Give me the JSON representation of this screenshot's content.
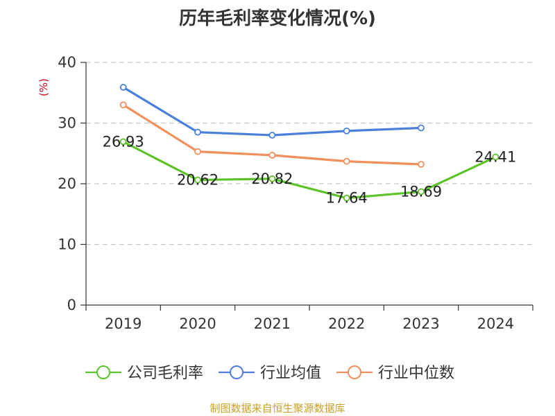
{
  "chart_data": {
    "type": "line",
    "title": "历年毛利率变化情况(%)",
    "ylabel": "(%)",
    "xlabel": "",
    "categories": [
      "2019",
      "2020",
      "2021",
      "2022",
      "2023",
      "2024"
    ],
    "ylim": [
      0,
      40
    ],
    "yticks": [
      0,
      10,
      20,
      30,
      40
    ],
    "grid": true,
    "legend_position": "bottom",
    "series": [
      {
        "name": "公司毛利率",
        "color": "#5cc328",
        "values": [
          26.93,
          20.62,
          20.82,
          17.64,
          18.69,
          24.41
        ],
        "labels": [
          "26.93",
          "20.62",
          "20.82",
          "17.64",
          "18.69",
          "24.41"
        ]
      },
      {
        "name": "行业均值",
        "color": "#4a7fdc",
        "values": [
          35.9,
          28.5,
          28.0,
          28.7,
          29.2,
          null
        ]
      },
      {
        "name": "行业中位数",
        "color": "#f28f5c",
        "values": [
          33.0,
          25.3,
          24.7,
          23.7,
          23.2,
          null
        ]
      }
    ]
  },
  "footer": {
    "source": "制图数据来自恒生聚源数据库"
  }
}
